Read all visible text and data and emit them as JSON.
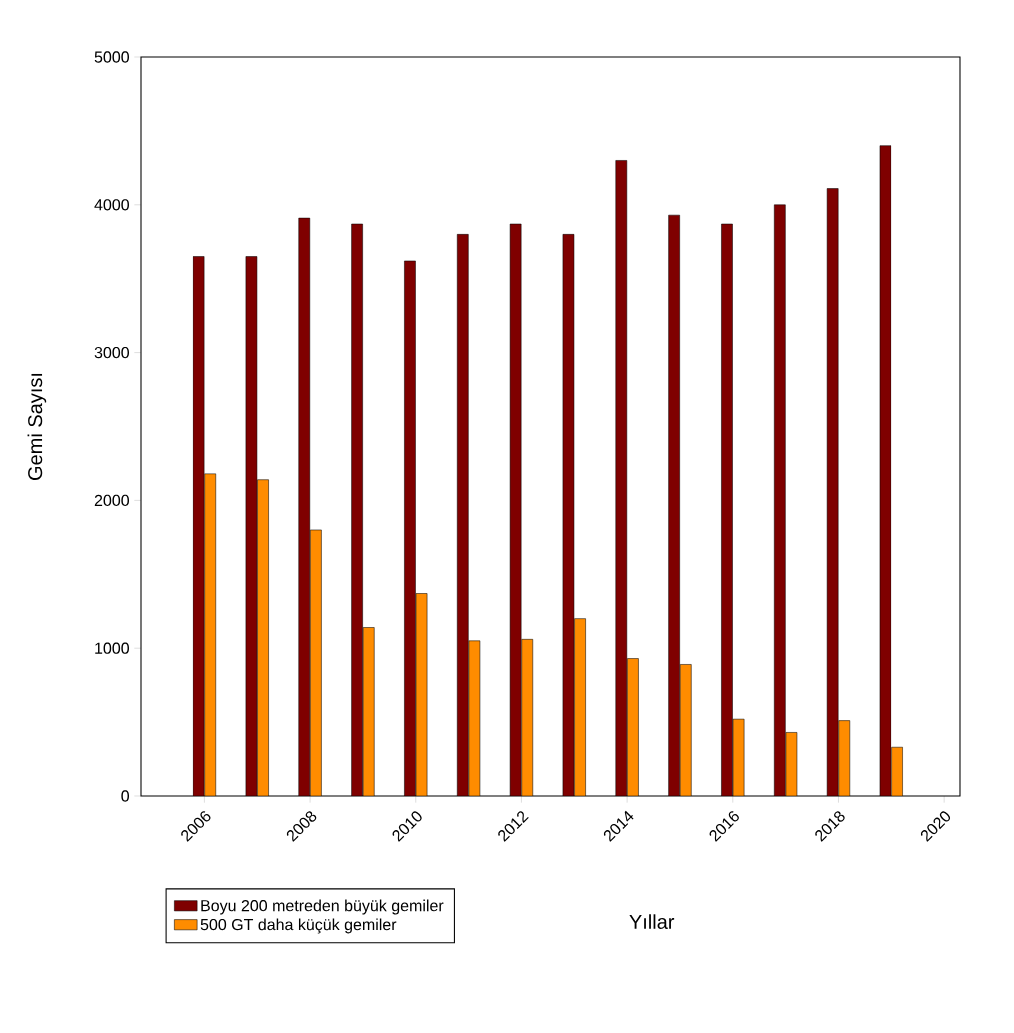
{
  "chart_data": {
    "type": "bar",
    "xlabel": "Yıllar",
    "ylabel": "Gemi Sayısı",
    "x": [
      2006,
      2007,
      2008,
      2009,
      2010,
      2011,
      2012,
      2013,
      2014,
      2015,
      2016,
      2017,
      2018,
      2019
    ],
    "series": [
      {
        "name": "Boyu 200 metreden büyük gemiler",
        "color": "#7f0000",
        "values": [
          3650,
          3650,
          3910,
          3870,
          3620,
          3800,
          3870,
          3800,
          4300,
          3930,
          3870,
          4000,
          4110,
          4400
        ]
      },
      {
        "name": "500 GT daha küçük gemiler",
        "color": "#ff8c00",
        "values": [
          2180,
          2140,
          1800,
          1140,
          1370,
          1050,
          1060,
          1200,
          930,
          890,
          520,
          430,
          510,
          330
        ]
      }
    ],
    "xlim": [
      2004.8,
      2020.3
    ],
    "ylim": [
      0,
      5000
    ],
    "xticks": [
      2006,
      2008,
      2010,
      2012,
      2014,
      2016,
      2018,
      2020
    ],
    "yticks": [
      0,
      1000,
      2000,
      3000,
      4000,
      5000
    ],
    "legend": "bottom left"
  }
}
